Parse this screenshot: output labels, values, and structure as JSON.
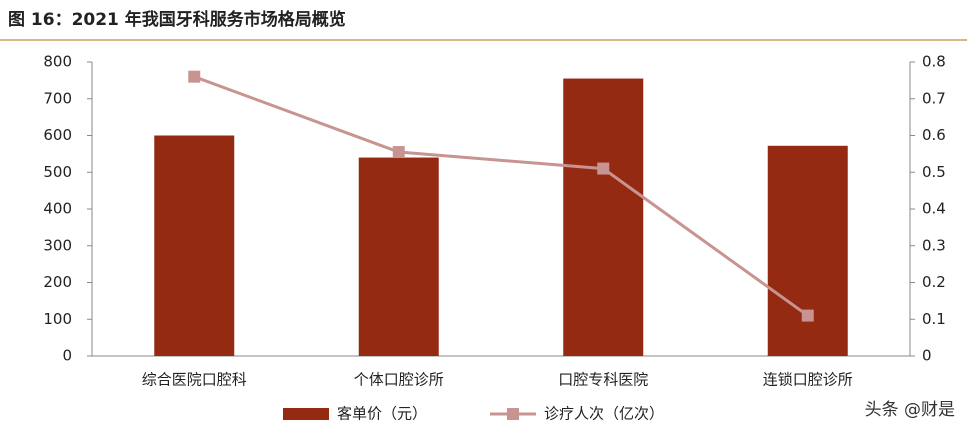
{
  "chart_data": {
    "type": "bar-line",
    "title": "图 16：2021 年我国牙科服务市场格局概览",
    "categories": [
      "综合医院口腔科",
      "个体口腔诊所",
      "口腔专科医院",
      "连锁口腔诊所"
    ],
    "series": [
      {
        "name": "客单价（元）",
        "type": "bar",
        "color": "#952a12",
        "values": [
          600,
          540,
          755,
          572
        ]
      },
      {
        "name": "诊疗人次（亿次）",
        "type": "line",
        "axis": "y2",
        "color": "#c89491",
        "values": [
          0.76,
          0.555,
          0.51,
          0.11
        ]
      }
    ],
    "ylim": [
      0,
      800
    ],
    "yticks": [
      0,
      100,
      200,
      300,
      400,
      500,
      600,
      700,
      800
    ],
    "y2lim": [
      0,
      0.8
    ],
    "y2ticks": [
      0,
      0.1,
      0.2,
      0.3,
      0.4,
      0.5,
      0.6,
      0.7,
      0.8
    ],
    "legend": "bottom",
    "watermark": "头条 @财是"
  }
}
